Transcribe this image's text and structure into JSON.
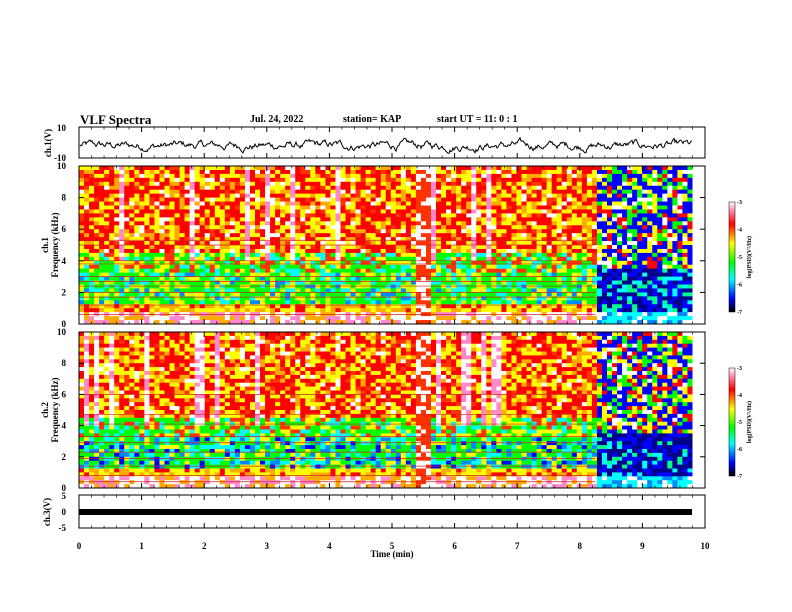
{
  "header": {
    "title": "VLF Spectra",
    "date": "Jul. 24, 2022",
    "station": "station= KAP",
    "start": "start UT = 11: 0 : 1"
  },
  "chart_data": [
    {
      "type": "line",
      "panel": "ch1-waveform",
      "ylabel": "ch.1(V)",
      "ylim": [
        -10,
        10
      ],
      "ytick_labels": [
        "10",
        "-10"
      ],
      "xlim": [
        0,
        10
      ],
      "note": "noisy waveform roughly between -8 and 4 V"
    },
    {
      "type": "heatmap",
      "panel": "ch1-spectrogram",
      "ylabel": "ch.1\nFrequency (kHz)",
      "ylabel_line1": "ch.1",
      "ylabel_line2": "Frequency (kHz)",
      "ylim": [
        0,
        10
      ],
      "ytick_labels": [
        "0",
        "2",
        "4",
        "6",
        "8",
        "10"
      ],
      "xlim": [
        0,
        9.8
      ],
      "colorbar": {
        "label": "log(PSD)(V²/Hz)",
        "range": [
          -7,
          -3
        ],
        "tick_labels": [
          "-3",
          "-4",
          "-5",
          "-6",
          "-7"
        ]
      }
    },
    {
      "type": "heatmap",
      "panel": "ch2-spectrogram",
      "ylabel_line1": "ch.2",
      "ylabel_line2": "Frequency (kHz)",
      "ylim": [
        0,
        10
      ],
      "ytick_labels": [
        "0",
        "2",
        "4",
        "6",
        "8",
        "10"
      ],
      "xlim": [
        0,
        9.8
      ],
      "colorbar": {
        "label": "log(PSD)(V²/Hz)",
        "range": [
          -7,
          -3
        ],
        "tick_labels": [
          "-3",
          "-4",
          "-5",
          "-6",
          "-7"
        ]
      }
    },
    {
      "type": "line",
      "panel": "ch3-waveform",
      "ylabel": "ch.3(V)",
      "ylim": [
        -5,
        5
      ],
      "ytick_labels": [
        "5",
        "0",
        "-5"
      ],
      "xlim": [
        0,
        10
      ],
      "note": "thick flat band near -1 V"
    }
  ],
  "xaxis": {
    "label": "Time (min)",
    "ticks": [
      0,
      1,
      2,
      3,
      4,
      5,
      6,
      7,
      8,
      9,
      10
    ],
    "tick_labels": [
      "0",
      "1",
      "2",
      "3",
      "4",
      "5",
      "6",
      "7",
      "8",
      "9",
      "10"
    ]
  }
}
